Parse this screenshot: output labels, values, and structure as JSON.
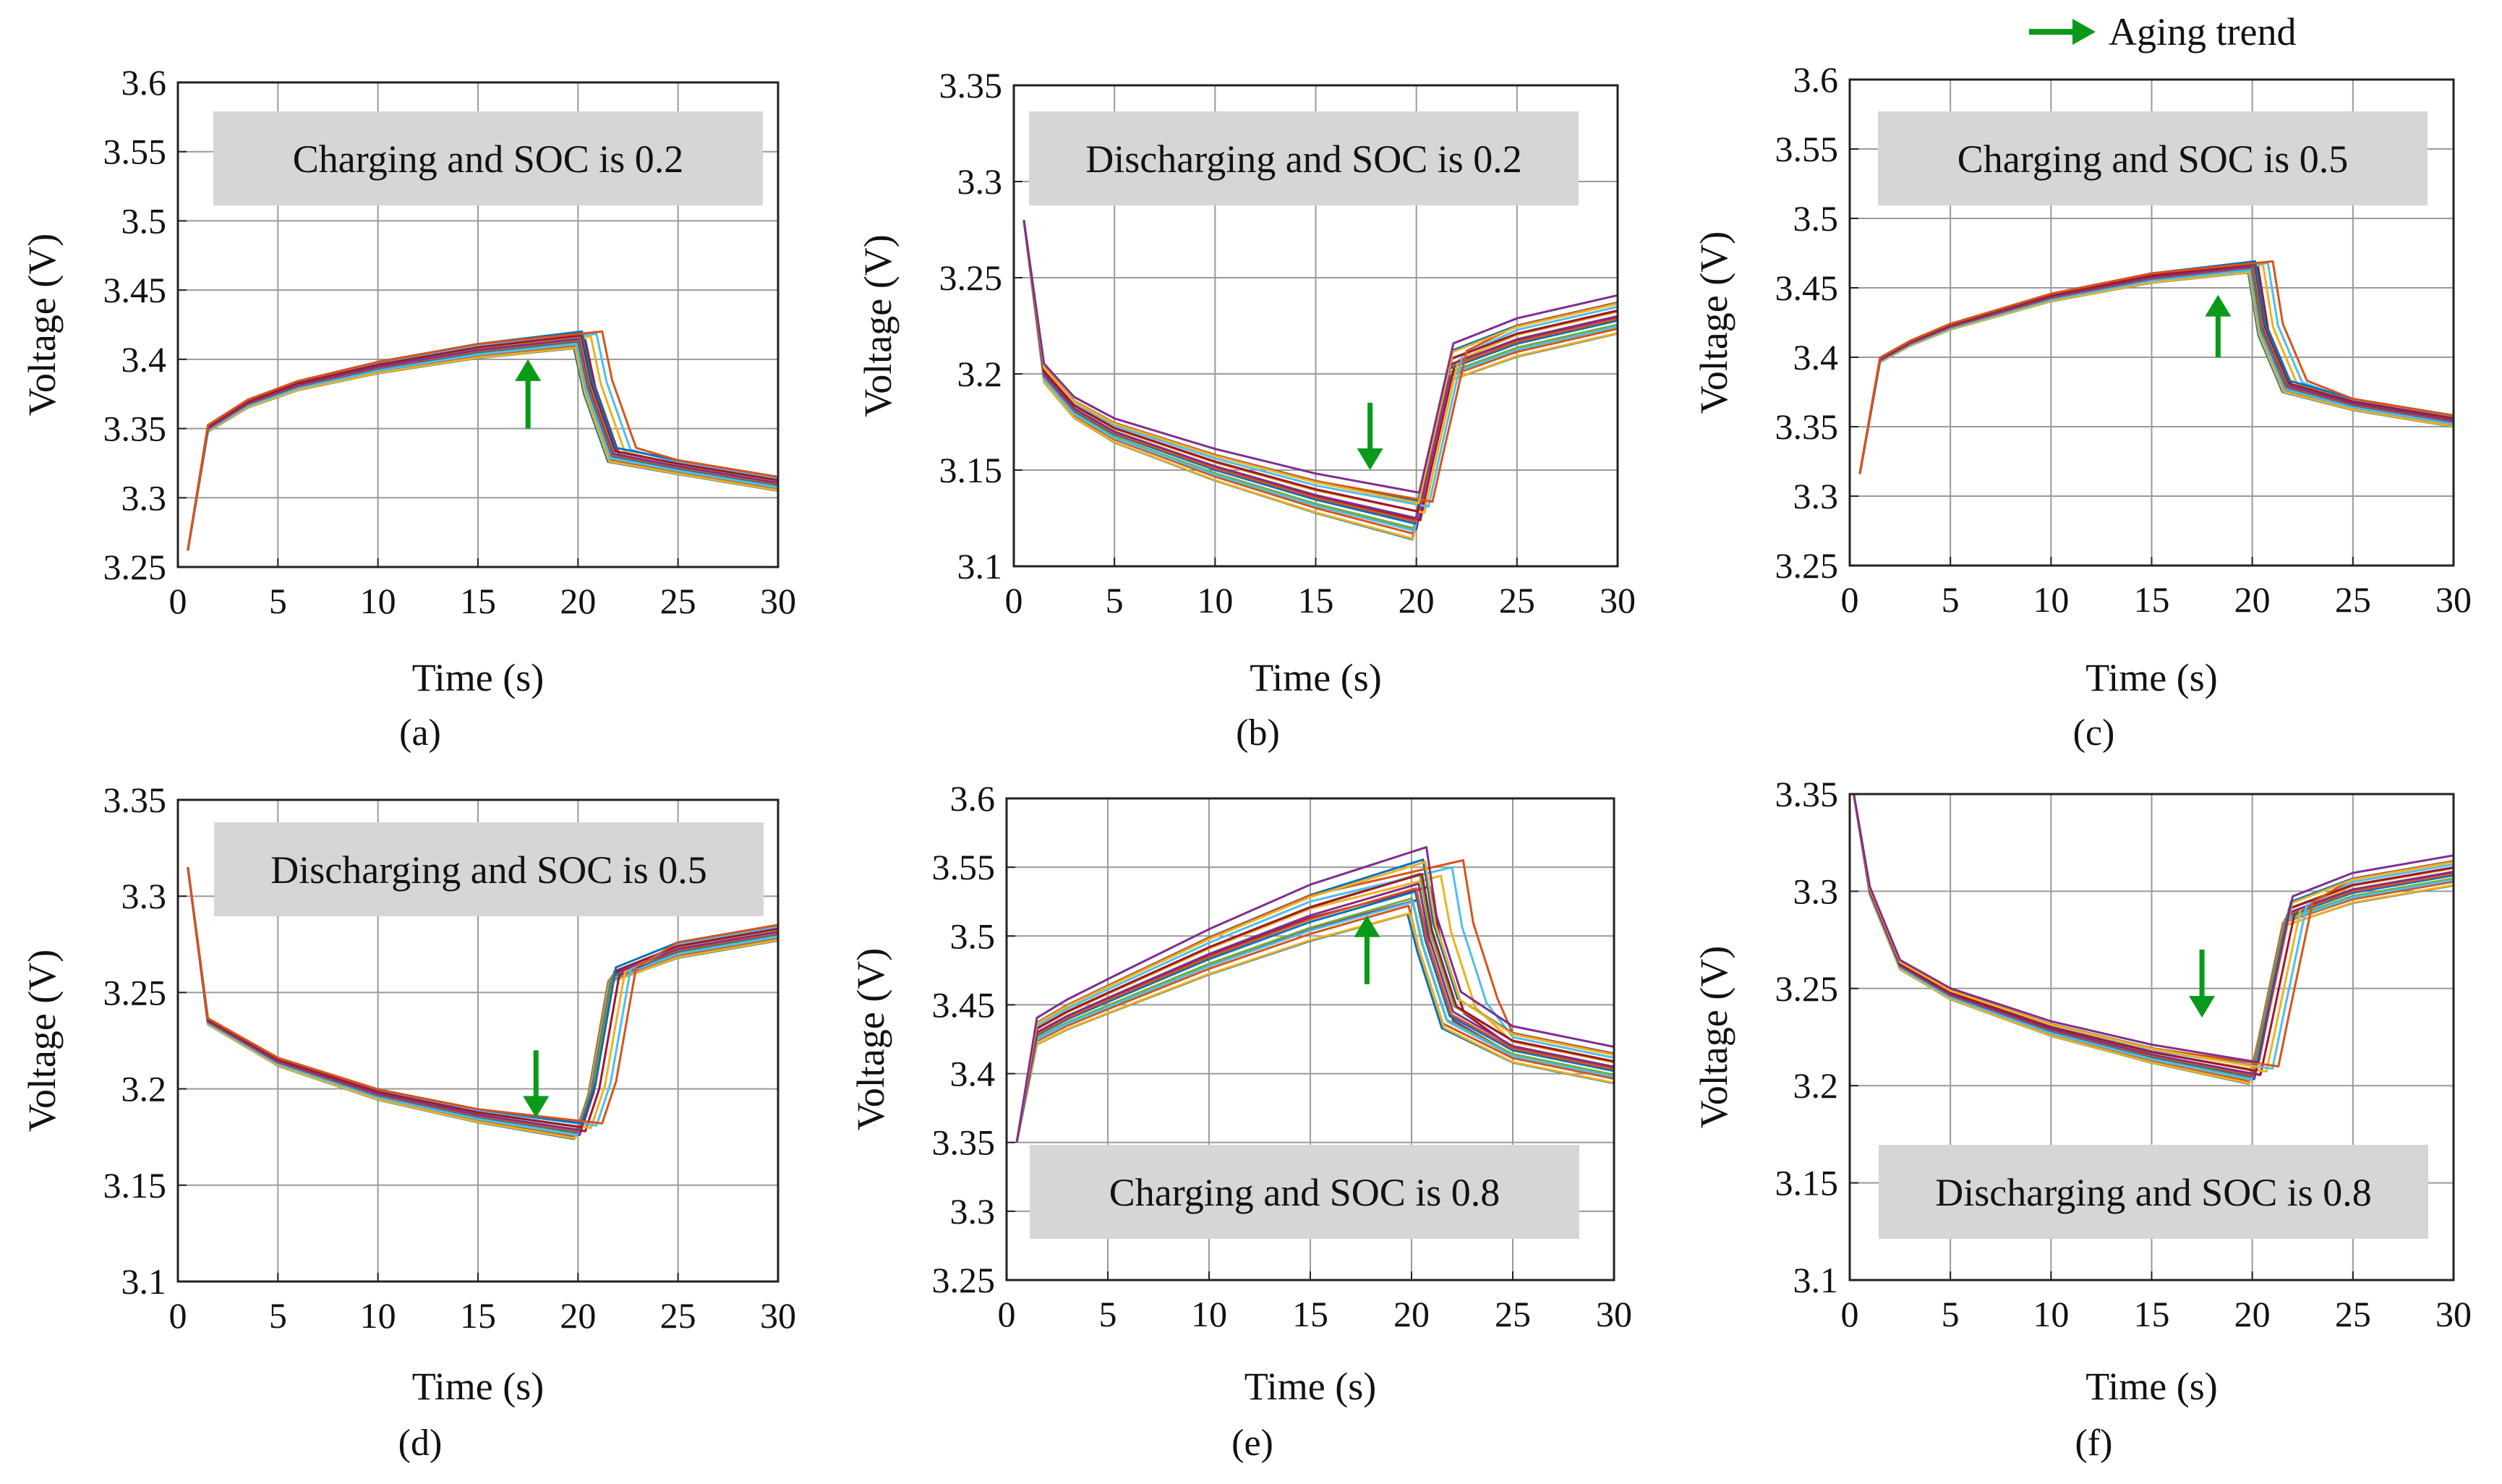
{
  "figure": {
    "legend": {
      "label": "Aging trend",
      "color": "#0a9a1a"
    }
  },
  "chart_data": [
    {
      "type": "line",
      "caption": "(a)",
      "annotation": "Charging and SOC is 0.2",
      "xlabel": "Time (s)",
      "ylabel": "Voltage (V)",
      "xlim": [
        0,
        30
      ],
      "ylim": [
        3.25,
        3.6
      ],
      "xticks": [
        0,
        5,
        10,
        15,
        20,
        25,
        30
      ],
      "xtick_labels": [
        "0",
        "5",
        "10",
        "15",
        "20",
        "25",
        "30"
      ],
      "yticks": [
        3.25,
        3.3,
        3.35,
        3.4,
        3.45,
        3.5,
        3.55,
        3.6
      ],
      "ytick_labels": [
        "3.25",
        "3.3",
        "3.35",
        "3.4",
        "3.45",
        "3.5",
        "3.55",
        "3.6"
      ],
      "aging_arrow": {
        "direction": "up",
        "x": 17.5,
        "y_from": 3.35,
        "y_to": 3.4
      },
      "profile": {
        "x": [
          0.5,
          1.5,
          3.5,
          6,
          10,
          15,
          19.8,
          20.3,
          21.5,
          25,
          30
        ],
        "y": [
          3.262,
          3.35,
          3.368,
          3.381,
          3.394,
          3.406,
          3.414,
          3.38,
          3.331,
          3.322,
          3.31
        ]
      },
      "series_spread": {
        "count": 16,
        "before": 0.006,
        "after": 0.005,
        "shift_max": 1.5
      },
      "grid": true
    },
    {
      "type": "line",
      "caption": "(b)",
      "annotation": "Discharging and SOC is 0.2",
      "xlabel": "Time (s)",
      "ylabel": "Voltage (V)",
      "xlim": [
        0,
        30
      ],
      "ylim": [
        3.1,
        3.35
      ],
      "xticks": [
        0,
        5,
        10,
        15,
        20,
        25,
        30
      ],
      "xtick_labels": [
        "0",
        "5",
        "10",
        "15",
        "20",
        "25",
        "30"
      ],
      "yticks": [
        3.1,
        3.15,
        3.2,
        3.25,
        3.3,
        3.35
      ],
      "ytick_labels": [
        "3.1",
        "3.15",
        "3.2",
        "3.25",
        "3.3",
        "3.35"
      ],
      "aging_arrow": {
        "direction": "down",
        "x": 17.7,
        "y_from": 3.185,
        "y_to": 3.15
      },
      "profile": {
        "x": [
          0.5,
          1.5,
          3,
          5,
          10,
          15,
          19.8,
          20.3,
          21.5,
          25,
          30
        ],
        "y": [
          3.28,
          3.2,
          3.182,
          3.17,
          3.152,
          3.137,
          3.125,
          3.15,
          3.205,
          3.218,
          3.23
        ]
      },
      "series_spread": {
        "count": 18,
        "before": 0.011,
        "after": 0.009,
        "shift_max": 1.2
      },
      "grid": true
    },
    {
      "type": "line",
      "caption": "(c)",
      "annotation": "Charging and SOC is 0.5",
      "xlabel": "Time (s)",
      "ylabel": "Voltage (V)",
      "xlim": [
        0,
        30
      ],
      "ylim": [
        3.25,
        3.6
      ],
      "xticks": [
        0,
        5,
        10,
        15,
        20,
        25,
        30
      ],
      "xtick_labels": [
        "0",
        "5",
        "10",
        "15",
        "20",
        "25",
        "30"
      ],
      "yticks": [
        3.25,
        3.3,
        3.35,
        3.4,
        3.45,
        3.5,
        3.55,
        3.6
      ],
      "ytick_labels": [
        "3.25",
        "3.3",
        "3.35",
        "3.4",
        "3.45",
        "3.5",
        "3.55",
        "3.6"
      ],
      "aging_arrow": {
        "direction": "up",
        "x": 18.3,
        "y_from": 3.4,
        "y_to": 3.445
      },
      "profile": {
        "x": [
          0.5,
          1.5,
          3,
          5,
          10,
          15,
          19.8,
          20.3,
          21.5,
          25,
          30
        ],
        "y": [
          3.316,
          3.398,
          3.41,
          3.422,
          3.443,
          3.457,
          3.465,
          3.42,
          3.379,
          3.366,
          3.354
        ]
      },
      "series_spread": {
        "count": 16,
        "before": 0.004,
        "after": 0.004,
        "shift_max": 1.3
      },
      "grid": true
    },
    {
      "type": "line",
      "caption": "(d)",
      "annotation": "Discharging and SOC is 0.5",
      "xlabel": "Time (s)",
      "ylabel": "Voltage (V)",
      "xlim": [
        0,
        30
      ],
      "ylim": [
        3.1,
        3.35
      ],
      "xticks": [
        0,
        5,
        10,
        15,
        20,
        25,
        30
      ],
      "xtick_labels": [
        "0",
        "5",
        "10",
        "15",
        "20",
        "25",
        "30"
      ],
      "yticks": [
        3.1,
        3.15,
        3.2,
        3.25,
        3.3,
        3.35
      ],
      "ytick_labels": [
        "3.1",
        "3.15",
        "3.2",
        "3.25",
        "3.3",
        "3.35"
      ],
      "aging_arrow": {
        "direction": "down",
        "x": 17.9,
        "y_from": 3.22,
        "y_to": 3.185
      },
      "profile": {
        "x": [
          0.5,
          1.5,
          3,
          5,
          10,
          15,
          19.8,
          20.5,
          21.5,
          25,
          30
        ],
        "y": [
          3.315,
          3.235,
          3.226,
          3.214,
          3.197,
          3.186,
          3.178,
          3.2,
          3.259,
          3.272,
          3.281
        ]
      },
      "series_spread": {
        "count": 16,
        "before": 0.004,
        "after": 0.004,
        "shift_max": 1.5
      },
      "grid": true
    },
    {
      "type": "line",
      "caption": "(e)",
      "annotation": "Charging and SOC is 0.8",
      "xlabel": "Time (s)",
      "ylabel": "Voltage (V)",
      "xlim": [
        0,
        30
      ],
      "ylim": [
        3.25,
        3.6
      ],
      "xticks": [
        0,
        5,
        10,
        15,
        20,
        25,
        30
      ],
      "xtick_labels": [
        "0",
        "5",
        "10",
        "15",
        "20",
        "25",
        "30"
      ],
      "yticks": [
        3.25,
        3.3,
        3.35,
        3.4,
        3.45,
        3.5,
        3.55,
        3.6
      ],
      "ytick_labels": [
        "3.25",
        "3.3",
        "3.35",
        "3.4",
        "3.45",
        "3.5",
        "3.55",
        "3.6"
      ],
      "aging_arrow": {
        "direction": "up",
        "x": 17.8,
        "y_from": 3.465,
        "y_to": 3.515
      },
      "profile": {
        "x": [
          0.5,
          1.5,
          3,
          5,
          10,
          15,
          19.8,
          20.3,
          21.5,
          25,
          30
        ],
        "y": [
          3.35,
          3.43,
          3.442,
          3.455,
          3.487,
          3.515,
          3.538,
          3.5,
          3.445,
          3.42,
          3.405
        ]
      },
      "series_spread": {
        "count": 18,
        "before": 0.022,
        "after": 0.012,
        "shift_max": 3.3
      },
      "grid": true
    },
    {
      "type": "line",
      "caption": "(f)",
      "annotation": "Discharging and SOC is 0.8",
      "xlabel": "Time (s)",
      "ylabel": "Voltage (V)",
      "xlim": [
        0,
        30
      ],
      "ylim": [
        3.1,
        3.35
      ],
      "xticks": [
        0,
        5,
        10,
        15,
        20,
        25,
        30
      ],
      "xtick_labels": [
        "0",
        "5",
        "10",
        "15",
        "20",
        "25",
        "30"
      ],
      "yticks": [
        3.1,
        3.15,
        3.2,
        3.25,
        3.3,
        3.35
      ],
      "ytick_labels": [
        "3.1",
        "3.15",
        "3.2",
        "3.25",
        "3.3",
        "3.35"
      ],
      "aging_arrow": {
        "direction": "down",
        "x": 17.5,
        "y_from": 3.27,
        "y_to": 3.235
      },
      "profile": {
        "x": [
          0.2,
          1,
          2.5,
          5,
          10,
          15,
          19.8,
          20.3,
          21.5,
          25,
          30
        ],
        "y": [
          3.35,
          3.3,
          3.262,
          3.247,
          3.229,
          3.216,
          3.206,
          3.23,
          3.289,
          3.301,
          3.31
        ]
      },
      "series_spread": {
        "count": 18,
        "before": 0.005,
        "after": 0.007,
        "shift_max": 1.8
      },
      "grid": true
    }
  ]
}
